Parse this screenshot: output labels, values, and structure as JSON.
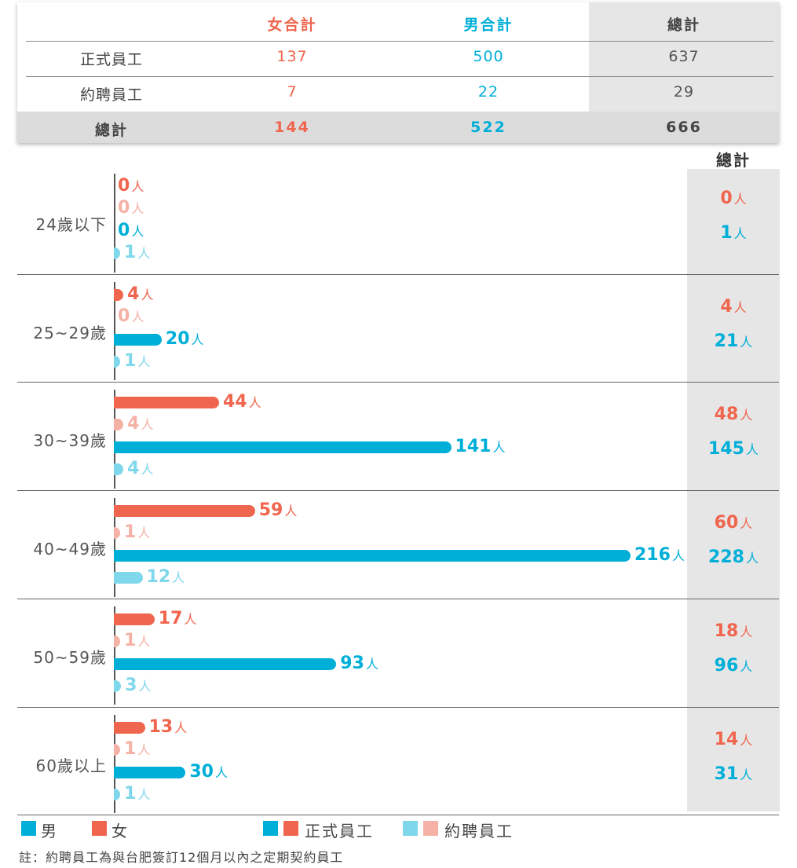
{
  "colors": {
    "female_regular": "#f0654d",
    "female_contract": "#f5b1a5",
    "male_regular": "#00afd8",
    "male_contract": "#7fd7ec",
    "total_female": "#f0654d",
    "total_male": "#00afd8",
    "header_female": "#f0654d",
    "header_male": "#00afd8"
  },
  "summary_table": {
    "headers": [
      "女合計",
      "男合計",
      "總計"
    ],
    "rows": [
      {
        "label": "正式員工",
        "female": "137",
        "male": "500",
        "total": "637"
      },
      {
        "label": "約聘員工",
        "female": "7",
        "male": "22",
        "total": "29"
      }
    ],
    "footer": {
      "label": "總計",
      "female": "144",
      "male": "522",
      "total": "666"
    }
  },
  "chart_data": {
    "type": "bar",
    "orientation": "horizontal",
    "unit": "人",
    "categories": [
      "24歲以下",
      "25~29歲",
      "30~39歲",
      "40~49歲",
      "50~59歲",
      "60歲以上"
    ],
    "series": [
      {
        "name": "女 正式員工",
        "values": [
          0,
          4,
          44,
          59,
          17,
          13
        ]
      },
      {
        "name": "女 約聘員工",
        "values": [
          0,
          0,
          4,
          1,
          1,
          1
        ]
      },
      {
        "name": "男 正式員工",
        "values": [
          0,
          20,
          141,
          216,
          93,
          30
        ]
      },
      {
        "name": "男 約聘員工",
        "values": [
          1,
          1,
          4,
          12,
          3,
          1
        ]
      }
    ],
    "totals_header": "總計",
    "totals_female": [
      0,
      4,
      48,
      60,
      18,
      14
    ],
    "totals_male": [
      1,
      21,
      145,
      228,
      96,
      31
    ],
    "xlim": [
      0,
      216
    ]
  },
  "legend": {
    "male": "男",
    "female": "女",
    "regular": "正式員工",
    "contract": "約聘員工"
  },
  "note": "註：約聘員工為與台肥簽訂12個月以內之定期契約員工"
}
